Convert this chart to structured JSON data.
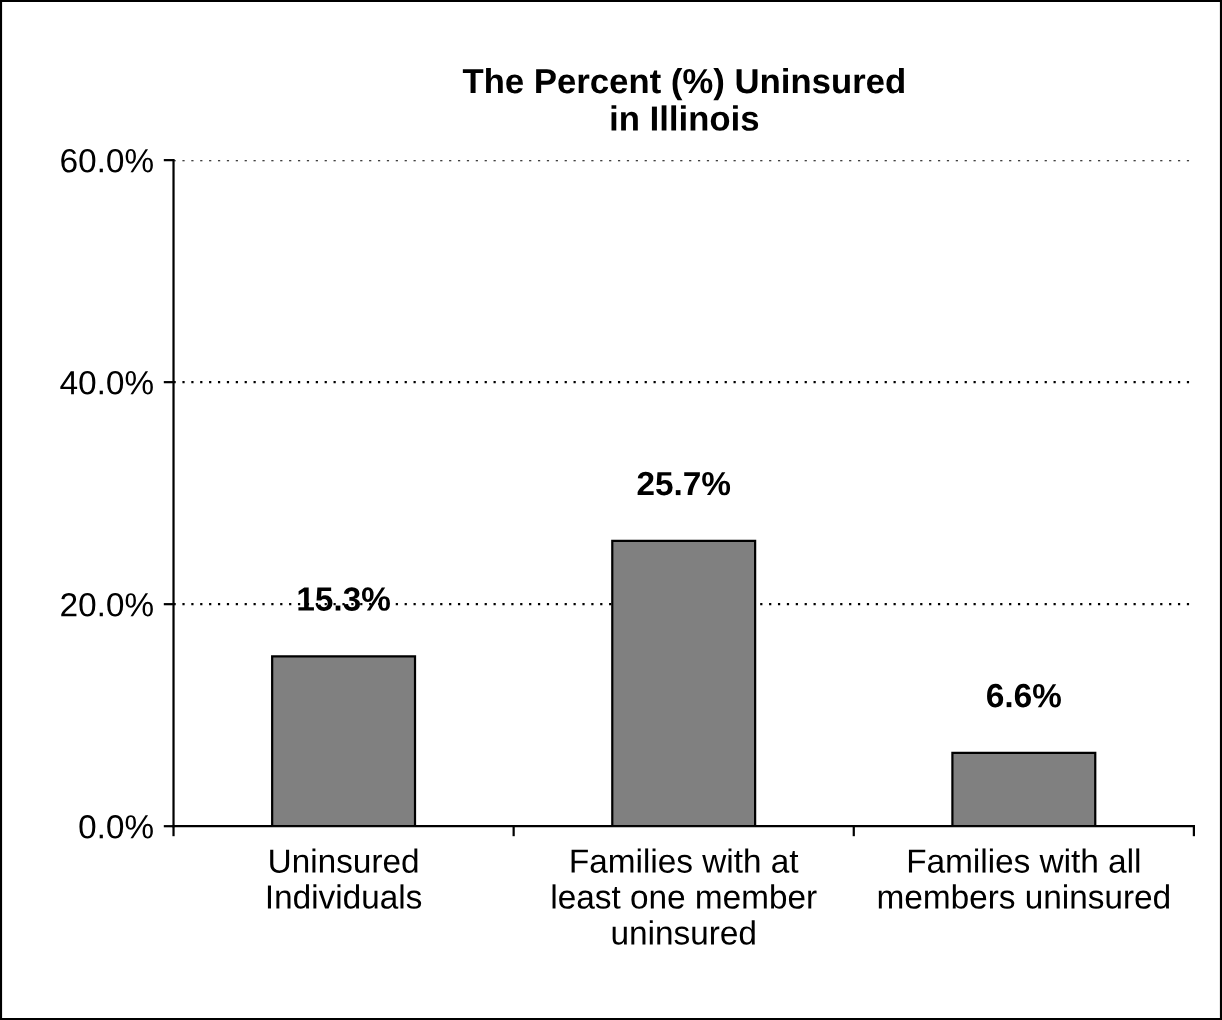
{
  "chart_data": {
    "type": "bar",
    "title": "The Percent (%) Uninsured\nin Illinois",
    "categories": [
      "Uninsured\nIndividuals",
      "Families with at\nleast one member\nuninsured",
      "Families with all\nmembers uninsured"
    ],
    "values": [
      15.3,
      25.7,
      6.6
    ],
    "value_labels": [
      "15.3%",
      "25.7%",
      "6.6%"
    ],
    "color": "#808080",
    "ylim": [
      0,
      60
    ],
    "yticks": [
      {
        "value": 0,
        "label": "0.0%"
      },
      {
        "value": 20,
        "label": "20.0%"
      },
      {
        "value": 40,
        "label": "40.0%"
      },
      {
        "value": 60,
        "label": "60.0%"
      }
    ],
    "grid": "y",
    "legend": false
  }
}
